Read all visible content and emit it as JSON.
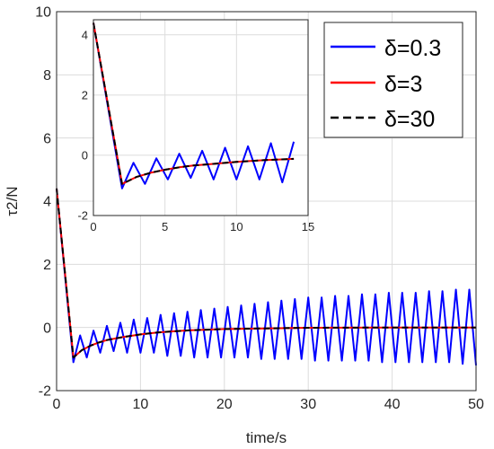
{
  "chart_data": [
    {
      "type": "line",
      "panel": "main",
      "xlabel": "time/s",
      "ylabel": "τ2/N",
      "xlim": [
        0,
        50
      ],
      "ylim": [
        -2,
        10
      ],
      "xticks": [
        0,
        10,
        20,
        30,
        40,
        50
      ],
      "yticks": [
        -2,
        0,
        2,
        4,
        6,
        8,
        10
      ],
      "grid": true,
      "legend": "top-right",
      "series": [
        {
          "name": "δ=0.3",
          "color": "#0000ff",
          "style": "solid",
          "x": [
            0,
            2,
            2.8,
            3.6,
            4.4,
            5.2,
            6.0,
            6.8,
            7.6,
            8.4,
            9.2,
            10.0,
            10.8,
            11.6,
            12.4,
            13.2,
            14.0,
            14.8,
            15.6,
            16.4,
            17.2,
            18.0,
            18.8,
            19.6,
            20.4,
            21.2,
            22.0,
            22.8,
            23.6,
            24.4,
            25.2,
            26.0,
            26.8,
            27.6,
            28.4,
            29.2,
            30.0,
            30.8,
            31.6,
            32.4,
            33.2,
            34.0,
            34.8,
            35.6,
            36.4,
            37.2,
            38.0,
            38.8,
            39.6,
            40.4,
            41.2,
            42.0,
            42.8,
            43.6,
            44.4,
            45.2,
            46.0,
            46.8,
            47.6,
            48.4,
            49.2,
            50.0
          ],
          "y": [
            4.4,
            -1.1,
            -0.25,
            -0.95,
            -0.1,
            -0.8,
            0.05,
            -0.75,
            0.15,
            -0.8,
            0.25,
            -0.8,
            0.3,
            -0.8,
            0.4,
            -0.9,
            0.45,
            -0.9,
            0.5,
            -0.95,
            0.55,
            -0.95,
            0.6,
            -0.95,
            0.65,
            -0.95,
            0.7,
            -0.95,
            0.75,
            -1.0,
            0.8,
            -1.0,
            0.85,
            -1.0,
            0.9,
            -1.0,
            0.95,
            -1.05,
            0.95,
            -1.05,
            1.0,
            -1.05,
            1.0,
            -1.05,
            1.05,
            -1.05,
            1.05,
            -1.1,
            1.1,
            -1.1,
            1.1,
            -1.1,
            1.1,
            -1.1,
            1.15,
            -1.1,
            1.15,
            -1.1,
            1.2,
            -1.15,
            1.2,
            -1.2
          ]
        },
        {
          "name": "δ=3",
          "color": "#ff0000",
          "style": "solid",
          "x": [
            0,
            2,
            3,
            4,
            5,
            6,
            8,
            10,
            12,
            14,
            16,
            18,
            20,
            25,
            30,
            40,
            50
          ],
          "y": [
            4.4,
            -0.95,
            -0.72,
            -0.58,
            -0.48,
            -0.4,
            -0.3,
            -0.22,
            -0.16,
            -0.12,
            -0.09,
            -0.07,
            -0.05,
            -0.03,
            -0.01,
            0.0,
            0.0
          ]
        },
        {
          "name": "δ=30",
          "color": "#000000",
          "style": "dashed",
          "x": [
            0,
            2,
            3,
            4,
            5,
            6,
            8,
            10,
            12,
            14,
            16,
            18,
            20,
            25,
            30,
            40,
            50
          ],
          "y": [
            4.4,
            -0.95,
            -0.72,
            -0.58,
            -0.48,
            -0.4,
            -0.3,
            -0.22,
            -0.16,
            -0.12,
            -0.09,
            -0.07,
            -0.05,
            -0.03,
            -0.01,
            0.0,
            0.0
          ]
        }
      ]
    },
    {
      "type": "line",
      "panel": "inset",
      "xlim": [
        0,
        15
      ],
      "ylim": [
        -2,
        4.5
      ],
      "xticks": [
        0,
        5,
        10,
        15
      ],
      "yticks": [
        -2,
        0,
        2,
        4
      ],
      "grid": true,
      "series": [
        {
          "name": "δ=0.3",
          "color": "#0000ff",
          "style": "solid",
          "x": [
            0,
            2,
            2.8,
            3.6,
            4.4,
            5.2,
            6.0,
            6.8,
            7.6,
            8.4,
            9.2,
            10.0,
            10.8,
            11.6,
            12.4,
            13.2,
            14.0
          ],
          "y": [
            4.4,
            -1.1,
            -0.25,
            -0.95,
            -0.1,
            -0.8,
            0.05,
            -0.75,
            0.15,
            -0.8,
            0.25,
            -0.8,
            0.3,
            -0.8,
            0.4,
            -0.9,
            0.45
          ]
        },
        {
          "name": "δ=3",
          "color": "#ff0000",
          "style": "solid",
          "x": [
            0,
            2,
            3,
            4,
            5,
            6,
            7,
            8,
            9,
            10,
            11,
            12,
            13,
            14
          ],
          "y": [
            4.4,
            -0.95,
            -0.72,
            -0.58,
            -0.48,
            -0.4,
            -0.34,
            -0.3,
            -0.26,
            -0.22,
            -0.19,
            -0.16,
            -0.14,
            -0.12
          ]
        },
        {
          "name": "δ=30",
          "color": "#000000",
          "style": "dashed",
          "x": [
            0,
            2,
            3,
            4,
            5,
            6,
            7,
            8,
            9,
            10,
            11,
            12,
            13,
            14
          ],
          "y": [
            4.4,
            -0.95,
            -0.72,
            -0.58,
            -0.48,
            -0.4,
            -0.34,
            -0.3,
            -0.26,
            -0.22,
            -0.19,
            -0.16,
            -0.14,
            -0.12
          ]
        }
      ]
    }
  ]
}
